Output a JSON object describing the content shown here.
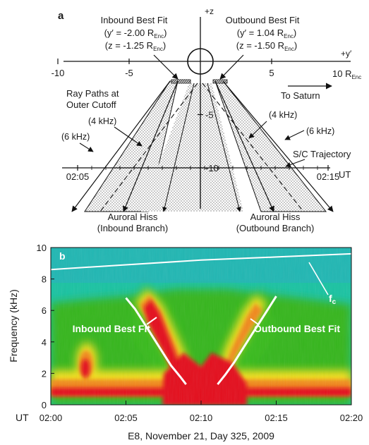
{
  "chart_data": [
    {
      "type": "diagram",
      "panel_label": "a",
      "axis_z_label": "+z",
      "axis_y_label": "+y′",
      "unit_main": "10 R",
      "unit_sub": "Enc",
      "y_ticks": [
        -10,
        -5,
        5
      ],
      "z_ticks": [
        -5,
        -10
      ],
      "time_ticks": [
        "02:05",
        "02:15"
      ],
      "time_axis_label": "UT",
      "to_saturn_label": "To Saturn",
      "ray_paths_line1": "Ray Paths at",
      "ray_paths_line2": "Outer Cutoff",
      "freq_labels": [
        "(4 kHz)",
        "(6 kHz)",
        "(4 kHz)",
        "(6 kHz)"
      ],
      "trajectory_label": "S/C Trajectory",
      "inbound": {
        "title": "Inbound Best Fit",
        "y_main": "(y′ = -2.00 R",
        "y_sub": "Enc",
        "y_close": ")",
        "z_main": "(z = -1.25 R",
        "z_sub": "Enc",
        "z_close": ")",
        "hiss_line1": "Auroral Hiss",
        "hiss_line2": "(Inbound Branch)"
      },
      "outbound": {
        "title": "Outbound Best Fit",
        "y_main": "(y′ = 1.04 R",
        "y_sub": "Enc",
        "y_close": ")",
        "z_main": "(z = -1.50 R",
        "z_sub": "Enc",
        "z_close": ")",
        "hiss_line1": "Auroral Hiss",
        "hiss_line2": "(Outbound Branch)"
      }
    },
    {
      "type": "heatmap",
      "panel_label": "b",
      "ylabel": "Frequency (kHz)",
      "ylim": [
        0,
        10
      ],
      "y_ticks": [
        0,
        2,
        4,
        6,
        8,
        10
      ],
      "x_unit_label": "UT",
      "x_ticks": [
        "02:00",
        "02:05",
        "02:10",
        "02:15",
        "02:20"
      ],
      "xlim_minutes": [
        0,
        20
      ],
      "xlabel": "E8, November 21, Day 325, 2009",
      "fc_label_main": "f",
      "fc_label_sub": "c",
      "fc_curve": {
        "x_minutes": [
          0,
          5,
          10,
          15,
          20
        ],
        "freq_khz": [
          8.6,
          8.9,
          9.2,
          9.4,
          9.6
        ]
      },
      "inbound_fit": {
        "label": "Inbound Best Fit",
        "x_minutes": [
          5.0,
          5.6,
          6.2,
          6.8,
          7.4,
          8.0,
          8.6,
          9.0
        ],
        "freq_khz": [
          6.8,
          6.1,
          5.2,
          4.3,
          3.4,
          2.5,
          1.8,
          1.3
        ]
      },
      "outbound_fit": {
        "label": "Outbound Best Fit",
        "x_minutes": [
          11.1,
          11.6,
          12.2,
          12.8,
          13.4,
          14.0,
          14.6,
          15.0
        ],
        "freq_khz": [
          1.3,
          1.9,
          2.7,
          3.6,
          4.5,
          5.4,
          6.3,
          6.9
        ]
      },
      "colors": {
        "background": "#19c3a2",
        "band": "#35b61f",
        "strong": "#f4e01e",
        "mid": "#f1891e",
        "max": "#e4081f"
      }
    }
  ]
}
